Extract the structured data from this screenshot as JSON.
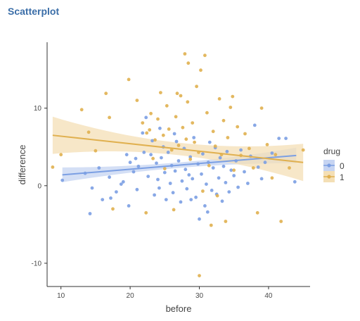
{
  "page": {
    "title": "Scatterplot"
  },
  "colors": {
    "series0": "#7b9fe3",
    "series1": "#e0b04f",
    "band0": "#c6d4f2",
    "band1": "#f4dfb5",
    "axis": "#333333"
  },
  "chart_data": {
    "type": "scatter",
    "xlabel": "before",
    "ylabel": "difference",
    "xlim": [
      8,
      46
    ],
    "ylim": [
      -13,
      18.5
    ],
    "xticks": [
      10,
      20,
      30,
      40
    ],
    "yticks": [
      -10,
      0,
      10
    ],
    "legend": {
      "title": "drug",
      "placement": "right",
      "entries": [
        "0",
        "1"
      ]
    },
    "series": [
      {
        "name": "0",
        "color": "#7b9fe3",
        "fit": {
          "x": [
            10.2,
            44.0
          ],
          "y": [
            1.4,
            3.9
          ]
        },
        "band_halfwidth": [
          0.95,
          0.35,
          1.0
        ],
        "points": [
          [
            10.2,
            0.7
          ],
          [
            13.5,
            1.6
          ],
          [
            14.2,
            -3.6
          ],
          [
            14.5,
            -0.3
          ],
          [
            15.5,
            2.3
          ],
          [
            16.0,
            -1.8
          ],
          [
            17.0,
            1.1
          ],
          [
            17.2,
            -1.6
          ],
          [
            18.0,
            -0.8
          ],
          [
            18.7,
            0.2
          ],
          [
            19.0,
            0.5
          ],
          [
            19.5,
            4.0
          ],
          [
            19.8,
            -2.6
          ],
          [
            20.0,
            3.0
          ],
          [
            20.5,
            1.8
          ],
          [
            21.0,
            -0.5
          ],
          [
            21.2,
            2.5
          ],
          [
            21.8,
            6.8
          ],
          [
            22.0,
            4.3
          ],
          [
            22.3,
            8.8
          ],
          [
            22.6,
            1.2
          ],
          [
            23.0,
            4.0
          ],
          [
            23.2,
            5.8
          ],
          [
            23.5,
            -1.2
          ],
          [
            23.8,
            2.9
          ],
          [
            24.0,
            0.8
          ],
          [
            24.2,
            -0.3
          ],
          [
            24.5,
            3.6
          ],
          [
            24.8,
            5.0
          ],
          [
            25.0,
            1.7
          ],
          [
            25.2,
            -1.8
          ],
          [
            25.5,
            4.3
          ],
          [
            25.8,
            0.3
          ],
          [
            26.0,
            2.6
          ],
          [
            26.2,
            -0.9
          ],
          [
            26.5,
            1.9
          ],
          [
            26.7,
            5.7
          ],
          [
            27.0,
            3.2
          ],
          [
            27.3,
            -2.1
          ],
          [
            27.5,
            0.6
          ],
          [
            27.8,
            4.8
          ],
          [
            28.0,
            2.1
          ],
          [
            28.2,
            -0.4
          ],
          [
            28.5,
            1.4
          ],
          [
            28.7,
            3.7
          ],
          [
            29.0,
            0.9
          ],
          [
            29.2,
            6.2
          ],
          [
            29.5,
            -1.5
          ],
          [
            29.8,
            2.8
          ],
          [
            30.0,
            -4.3
          ],
          [
            30.3,
            1.5
          ],
          [
            30.5,
            4.1
          ],
          [
            30.8,
            -2.6
          ],
          [
            31.0,
            0.2
          ],
          [
            31.3,
            3.0
          ],
          [
            31.5,
            5.6
          ],
          [
            31.8,
            -0.6
          ],
          [
            32.0,
            2.3
          ],
          [
            32.3,
            4.9
          ],
          [
            32.5,
            -1.1
          ],
          [
            32.8,
            1.0
          ],
          [
            33.0,
            3.6
          ],
          [
            33.3,
            -2.0
          ],
          [
            33.5,
            2.5
          ],
          [
            33.8,
            0.4
          ],
          [
            34.0,
            4.4
          ],
          [
            34.3,
            -0.8
          ],
          [
            34.6,
            2.0
          ],
          [
            35.0,
            1.3
          ],
          [
            35.3,
            3.2
          ],
          [
            35.6,
            -0.2
          ],
          [
            36.0,
            4.6
          ],
          [
            36.5,
            1.8
          ],
          [
            37.0,
            0.3
          ],
          [
            37.4,
            3.8
          ],
          [
            38.0,
            7.8
          ],
          [
            38.5,
            2.4
          ],
          [
            39.0,
            0.9
          ],
          [
            39.5,
            3.0
          ],
          [
            40.5,
            4.2
          ],
          [
            41.5,
            6.1
          ],
          [
            42.5,
            6.1
          ],
          [
            43.8,
            0.5
          ],
          [
            24.3,
            7.4
          ],
          [
            28.8,
            -1.8
          ],
          [
            31.2,
            -3.4
          ],
          [
            26.4,
            6.7
          ],
          [
            20.8,
            3.5
          ]
        ]
      },
      {
        "name": "1",
        "color": "#e0b04f",
        "fit": {
          "x": [
            8.8,
            45.0
          ],
          "y": [
            6.5,
            3.0
          ]
        },
        "band_halfwidth": [
          2.4,
          0.8,
          2.4
        ],
        "points": [
          [
            8.8,
            2.4
          ],
          [
            10.0,
            4.0
          ],
          [
            13.0,
            9.8
          ],
          [
            14.0,
            6.9
          ],
          [
            15.0,
            4.5
          ],
          [
            16.5,
            11.9
          ],
          [
            17.0,
            8.8
          ],
          [
            17.5,
            -3.0
          ],
          [
            19.8,
            13.7
          ],
          [
            21.0,
            11.0
          ],
          [
            21.8,
            8.1
          ],
          [
            22.3,
            -3.5
          ],
          [
            22.8,
            7.2
          ],
          [
            23.0,
            9.3
          ],
          [
            23.3,
            3.5
          ],
          [
            23.6,
            5.9
          ],
          [
            24.0,
            8.6
          ],
          [
            24.4,
            12.0
          ],
          [
            24.8,
            6.5
          ],
          [
            25.0,
            2.2
          ],
          [
            25.3,
            10.3
          ],
          [
            25.6,
            7.3
          ],
          [
            26.0,
            4.6
          ],
          [
            26.3,
            -3.1
          ],
          [
            26.6,
            8.9
          ],
          [
            27.0,
            5.2
          ],
          [
            27.3,
            11.6
          ],
          [
            27.6,
            7.5
          ],
          [
            27.9,
            17.0
          ],
          [
            28.1,
            6.0
          ],
          [
            28.4,
            15.8
          ],
          [
            28.7,
            3.4
          ],
          [
            29.0,
            8.1
          ],
          [
            29.3,
            5.6
          ],
          [
            29.6,
            12.8
          ],
          [
            29.9,
            4.3
          ],
          [
            30.2,
            14.9
          ],
          [
            30.5,
            -0.7
          ],
          [
            30.8,
            16.8
          ],
          [
            31.1,
            9.4
          ],
          [
            31.4,
            2.6
          ],
          [
            31.7,
            -5.1
          ],
          [
            32.0,
            7.0
          ],
          [
            32.3,
            5.1
          ],
          [
            32.6,
            -1.3
          ],
          [
            32.9,
            11.2
          ],
          [
            33.2,
            4.0
          ],
          [
            33.5,
            8.4
          ],
          [
            33.8,
            -4.6
          ],
          [
            34.1,
            6.2
          ],
          [
            34.5,
            10.1
          ],
          [
            35.0,
            2.0
          ],
          [
            35.5,
            7.6
          ],
          [
            36.0,
            3.9
          ],
          [
            36.6,
            6.7
          ],
          [
            37.2,
            4.8
          ],
          [
            37.8,
            2.3
          ],
          [
            38.4,
            -3.5
          ],
          [
            39.0,
            10.0
          ],
          [
            39.8,
            5.3
          ],
          [
            40.5,
            1.0
          ],
          [
            41.0,
            4.0
          ],
          [
            41.8,
            -4.6
          ],
          [
            43.0,
            2.3
          ],
          [
            45.0,
            4.6
          ],
          [
            30.0,
            -11.6
          ],
          [
            22.4,
            6.8
          ],
          [
            26.8,
            11.9
          ],
          [
            28.3,
            10.8
          ],
          [
            34.8,
            11.5
          ]
        ]
      }
    ]
  }
}
